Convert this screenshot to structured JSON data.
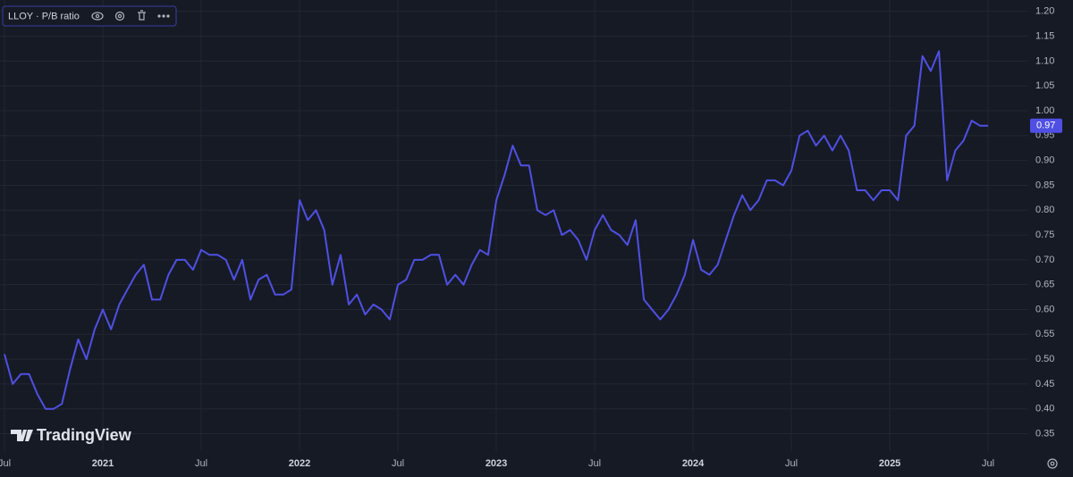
{
  "chart_data": {
    "type": "line",
    "watermark": "TradingView",
    "series": [
      {
        "name": "LLOY · P/B ratio",
        "color": "#4f50e3",
        "values": [
          0.51,
          0.45,
          0.47,
          0.47,
          0.43,
          0.4,
          0.4,
          0.41,
          0.48,
          0.54,
          0.5,
          0.56,
          0.6,
          0.56,
          0.61,
          0.64,
          0.67,
          0.69,
          0.62,
          0.62,
          0.67,
          0.7,
          0.7,
          0.68,
          0.72,
          0.71,
          0.71,
          0.7,
          0.66,
          0.7,
          0.62,
          0.66,
          0.67,
          0.63,
          0.63,
          0.64,
          0.82,
          0.78,
          0.8,
          0.76,
          0.65,
          0.71,
          0.61,
          0.63,
          0.59,
          0.61,
          0.6,
          0.58,
          0.65,
          0.66,
          0.7,
          0.7,
          0.71,
          0.71,
          0.65,
          0.67,
          0.65,
          0.69,
          0.72,
          0.71,
          0.82,
          0.87,
          0.93,
          0.89,
          0.89,
          0.8,
          0.79,
          0.8,
          0.75,
          0.76,
          0.74,
          0.7,
          0.76,
          0.79,
          0.76,
          0.75,
          0.73,
          0.78,
          0.62,
          0.6,
          0.58,
          0.6,
          0.63,
          0.67,
          0.74,
          0.68,
          0.67,
          0.69,
          0.74,
          0.79,
          0.83,
          0.8,
          0.82,
          0.86,
          0.86,
          0.85,
          0.88,
          0.95,
          0.96,
          0.93,
          0.95,
          0.92,
          0.95,
          0.92,
          0.84,
          0.84,
          0.82,
          0.84,
          0.84,
          0.82,
          0.95,
          0.97,
          1.11,
          1.08,
          1.12,
          0.86,
          0.92,
          0.94,
          0.98,
          0.97,
          0.97
        ]
      }
    ],
    "current_value": 0.97,
    "xlim": [
      -0.55,
      124.9
    ],
    "xticks": [
      {
        "value": 0,
        "label": "Jul"
      },
      {
        "value": 12,
        "label": "2021"
      },
      {
        "value": 24,
        "label": "Jul"
      },
      {
        "value": 36,
        "label": "2022"
      },
      {
        "value": 48,
        "label": "Jul"
      },
      {
        "value": 60,
        "label": "2023"
      },
      {
        "value": 72,
        "label": "Jul"
      },
      {
        "value": 84,
        "label": "2024"
      },
      {
        "value": 96,
        "label": "Jul"
      },
      {
        "value": 108,
        "label": "2025"
      },
      {
        "value": 120,
        "label": "Jul"
      }
    ],
    "ylim": [
      0.315,
      1.223
    ],
    "yticks": [
      0.35,
      {
        "value": 0.4,
        "label": "0.40"
      },
      0.45,
      {
        "value": 0.5,
        "label": "0.50"
      },
      0.55,
      {
        "value": 0.6,
        "label": "0.60"
      },
      0.65,
      {
        "value": 0.7,
        "label": "0.70"
      },
      0.75,
      {
        "value": 0.8,
        "label": "0.80"
      },
      0.85,
      {
        "value": 0.9,
        "label": "0.90"
      },
      0.95,
      {
        "value": 1,
        "label": "1.00"
      },
      1.05,
      {
        "value": 1.1,
        "label": "1.10"
      },
      1.15,
      {
        "value": 1.2,
        "label": "1.20"
      }
    ],
    "grid": true
  }
}
